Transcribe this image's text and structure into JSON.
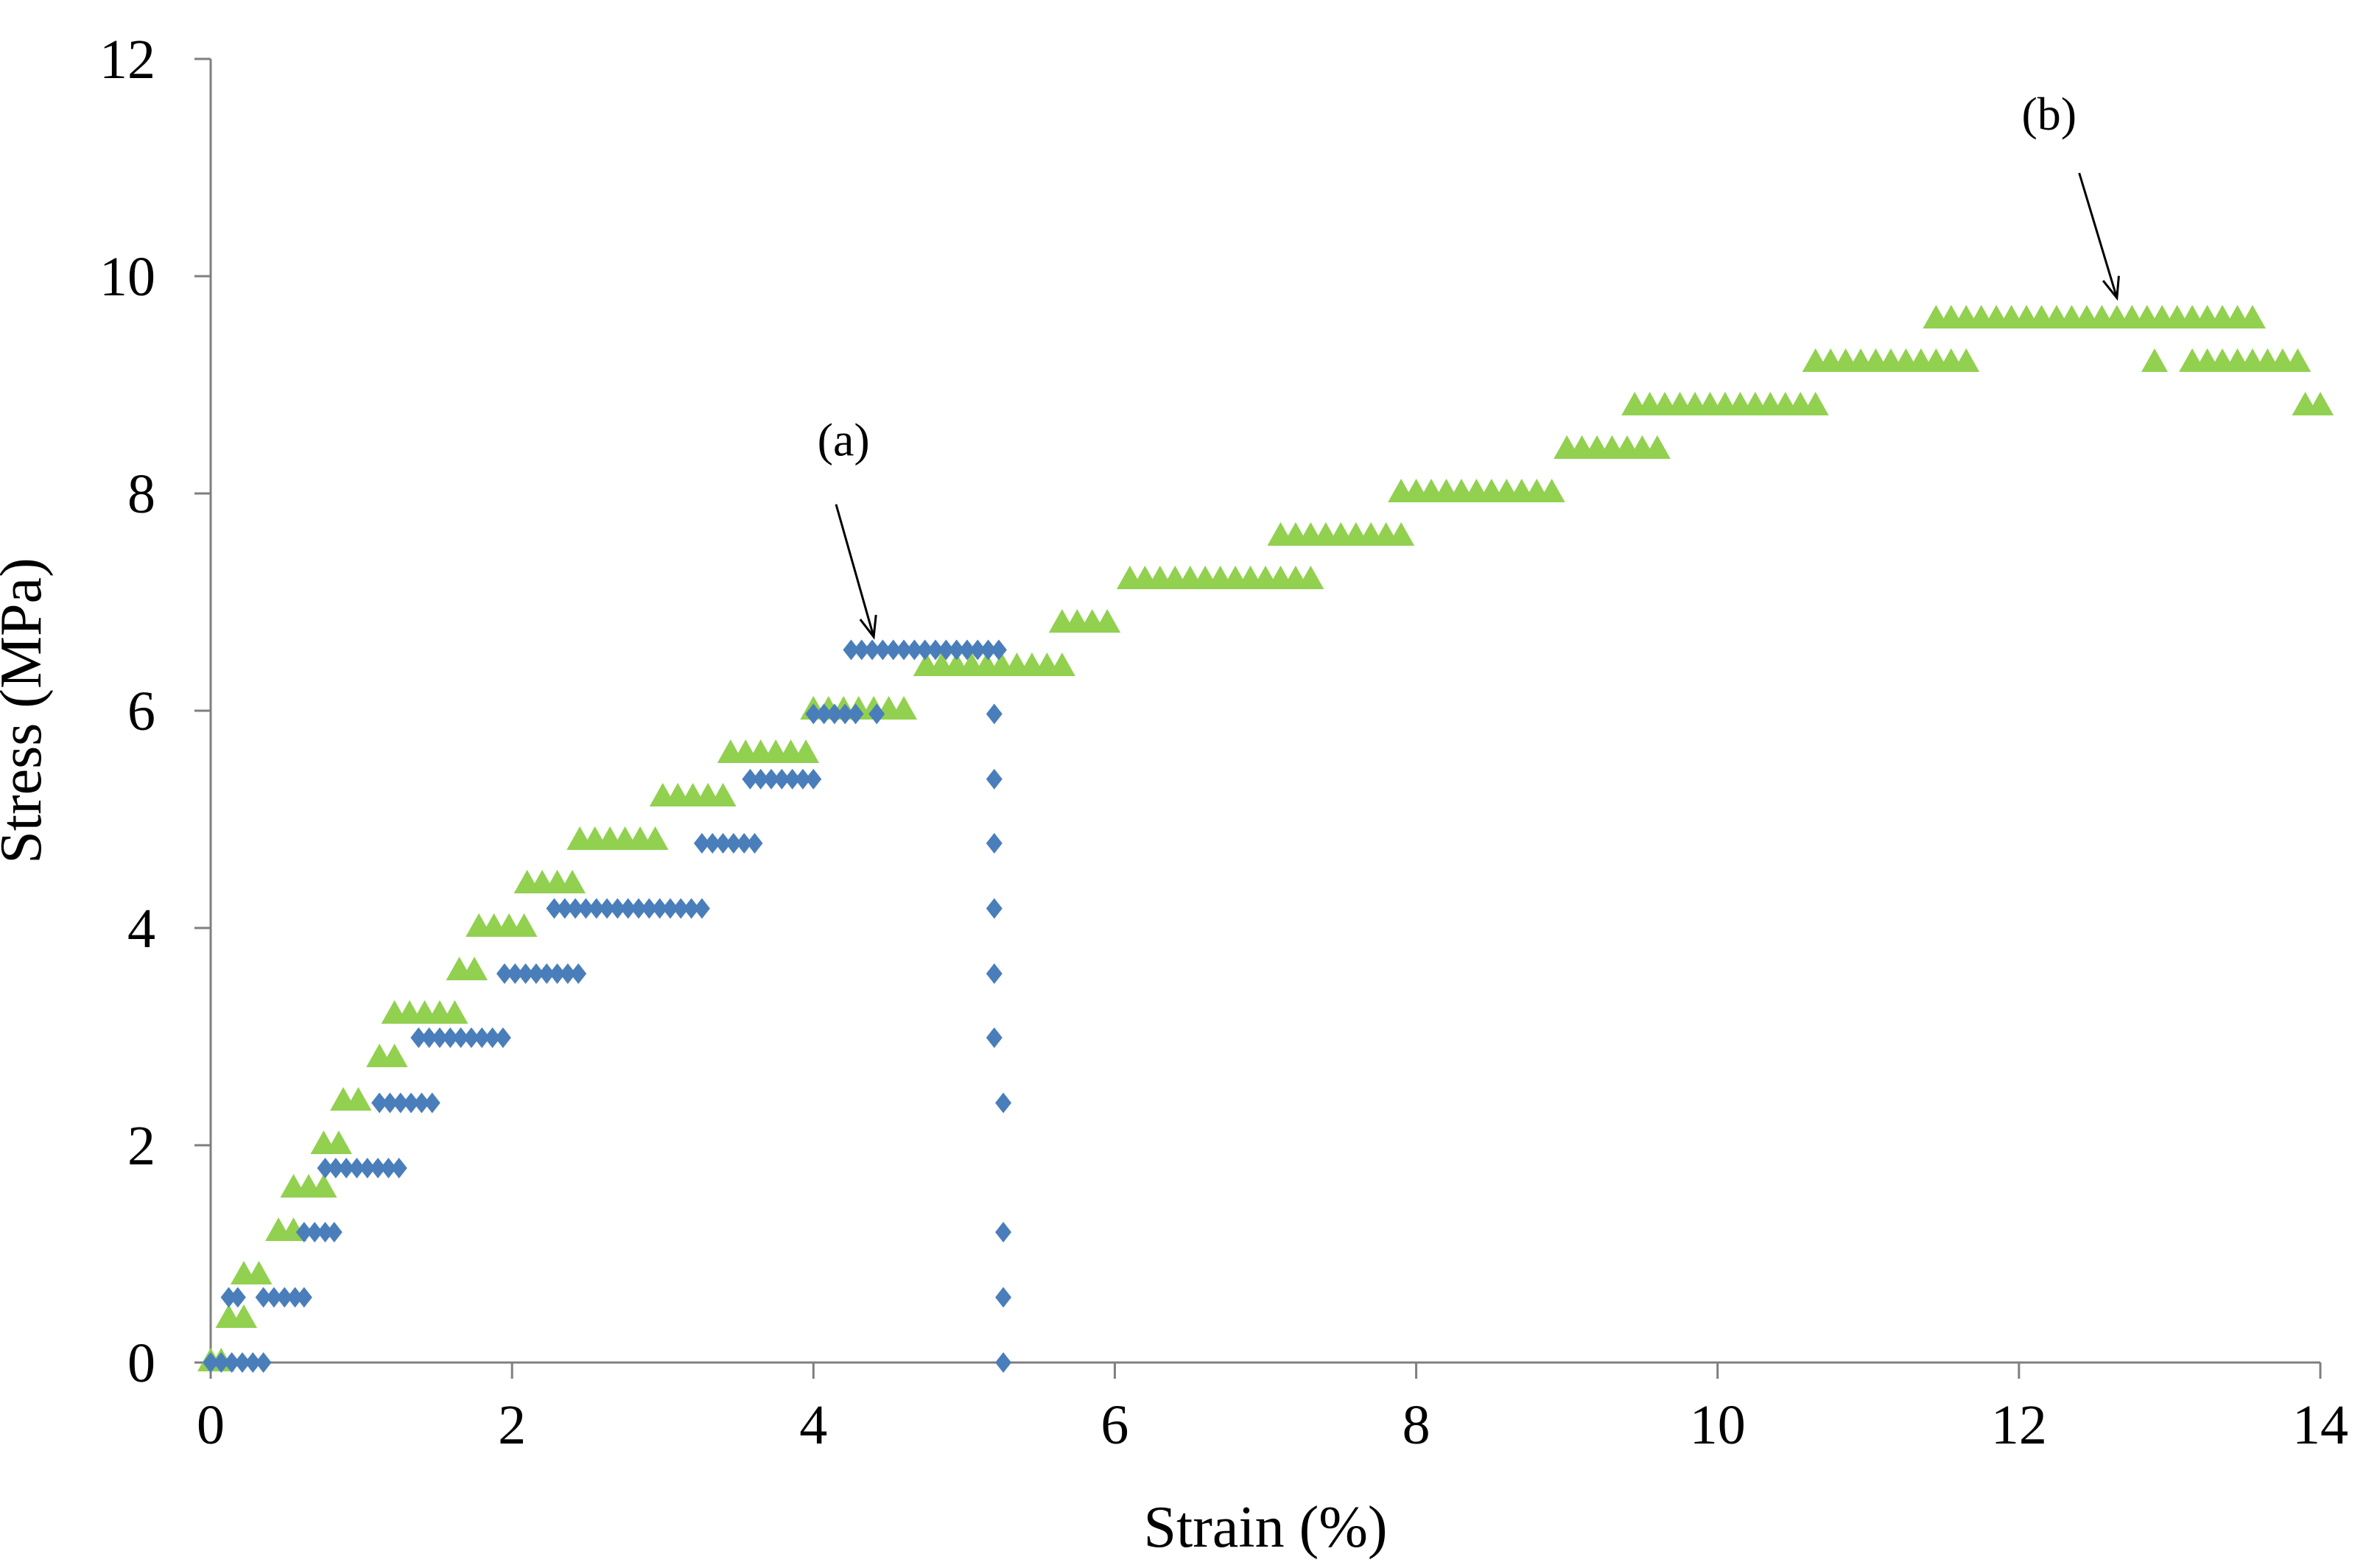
{
  "chart_data": {
    "type": "scatter",
    "title": "",
    "xlabel": "Strain (%)",
    "ylabel": "Stress (MPa)",
    "xlim": [
      0,
      14
    ],
    "ylim": [
      0,
      12
    ],
    "x_ticks": [
      0,
      2,
      4,
      6,
      8,
      10,
      12,
      14
    ],
    "y_ticks": [
      0,
      2,
      4,
      6,
      8,
      10,
      12
    ],
    "grid": false,
    "legend": "none",
    "series": [
      {
        "name": "(a)",
        "marker": "diamond",
        "color": "#4a7ebb",
        "points": [
          [
            0.0,
            0.0
          ],
          [
            0.07,
            0.0
          ],
          [
            0.14,
            0.0
          ],
          [
            0.21,
            0.0
          ],
          [
            0.28,
            0.0
          ],
          [
            0.35,
            0.0
          ],
          [
            0.12,
            0.6
          ],
          [
            0.18,
            0.6
          ],
          [
            0.35,
            0.6
          ],
          [
            0.42,
            0.6
          ],
          [
            0.49,
            0.6
          ],
          [
            0.56,
            0.6
          ],
          [
            0.62,
            0.6
          ],
          [
            0.62,
            1.2
          ],
          [
            0.69,
            1.2
          ],
          [
            0.76,
            1.2
          ],
          [
            0.82,
            1.2
          ],
          [
            0.76,
            1.79
          ],
          [
            0.83,
            1.79
          ],
          [
            0.9,
            1.79
          ],
          [
            0.97,
            1.79
          ],
          [
            1.04,
            1.79
          ],
          [
            1.11,
            1.79
          ],
          [
            1.18,
            1.79
          ],
          [
            1.25,
            1.79
          ],
          [
            1.12,
            2.39
          ],
          [
            1.19,
            2.39
          ],
          [
            1.26,
            2.39
          ],
          [
            1.33,
            2.39
          ],
          [
            1.4,
            2.39
          ],
          [
            1.47,
            2.39
          ],
          [
            1.38,
            2.99
          ],
          [
            1.45,
            2.99
          ],
          [
            1.52,
            2.99
          ],
          [
            1.59,
            2.99
          ],
          [
            1.66,
            2.99
          ],
          [
            1.73,
            2.99
          ],
          [
            1.8,
            2.99
          ],
          [
            1.87,
            2.99
          ],
          [
            1.94,
            2.99
          ],
          [
            1.95,
            3.58
          ],
          [
            2.02,
            3.58
          ],
          [
            2.09,
            3.58
          ],
          [
            2.16,
            3.58
          ],
          [
            2.23,
            3.58
          ],
          [
            2.3,
            3.58
          ],
          [
            2.37,
            3.58
          ],
          [
            2.44,
            3.58
          ],
          [
            2.28,
            4.18
          ],
          [
            2.35,
            4.18
          ],
          [
            2.42,
            4.18
          ],
          [
            2.49,
            4.18
          ],
          [
            2.56,
            4.18
          ],
          [
            2.63,
            4.18
          ],
          [
            2.7,
            4.18
          ],
          [
            2.77,
            4.18
          ],
          [
            2.84,
            4.18
          ],
          [
            2.91,
            4.18
          ],
          [
            2.98,
            4.18
          ],
          [
            3.05,
            4.18
          ],
          [
            3.12,
            4.18
          ],
          [
            3.19,
            4.18
          ],
          [
            3.26,
            4.18
          ],
          [
            3.26,
            4.78
          ],
          [
            3.33,
            4.78
          ],
          [
            3.4,
            4.78
          ],
          [
            3.47,
            4.78
          ],
          [
            3.54,
            4.78
          ],
          [
            3.61,
            4.78
          ],
          [
            3.58,
            5.37
          ],
          [
            3.65,
            5.37
          ],
          [
            3.72,
            5.37
          ],
          [
            3.79,
            5.37
          ],
          [
            3.86,
            5.37
          ],
          [
            3.93,
            5.37
          ],
          [
            4.0,
            5.37
          ],
          [
            4.0,
            5.97
          ],
          [
            4.07,
            5.97
          ],
          [
            4.14,
            5.97
          ],
          [
            4.21,
            5.97
          ],
          [
            4.28,
            5.97
          ],
          [
            4.42,
            5.97
          ],
          [
            4.25,
            6.56
          ],
          [
            4.32,
            6.56
          ],
          [
            4.39,
            6.56
          ],
          [
            4.46,
            6.56
          ],
          [
            4.53,
            6.56
          ],
          [
            4.6,
            6.56
          ],
          [
            4.67,
            6.56
          ],
          [
            4.74,
            6.56
          ],
          [
            4.81,
            6.56
          ],
          [
            4.88,
            6.56
          ],
          [
            4.95,
            6.56
          ],
          [
            5.02,
            6.56
          ],
          [
            5.09,
            6.56
          ],
          [
            5.16,
            6.56
          ],
          [
            5.23,
            6.56
          ],
          [
            5.2,
            5.97
          ],
          [
            5.2,
            5.37
          ],
          [
            5.2,
            4.78
          ],
          [
            5.2,
            4.18
          ],
          [
            5.2,
            3.58
          ],
          [
            5.2,
            2.99
          ],
          [
            5.26,
            2.39
          ],
          [
            5.26,
            1.2
          ],
          [
            5.26,
            0.6
          ],
          [
            5.26,
            0.0
          ]
        ]
      },
      {
        "name": "(b)",
        "marker": "triangle",
        "color": "#92d050",
        "points": [
          [
            0.0,
            0.0
          ],
          [
            0.07,
            0.0
          ],
          [
            0.12,
            0.4
          ],
          [
            0.22,
            0.4
          ],
          [
            0.22,
            0.8
          ],
          [
            0.32,
            0.8
          ],
          [
            0.45,
            1.2
          ],
          [
            0.55,
            1.2
          ],
          [
            0.55,
            1.6
          ],
          [
            0.65,
            1.6
          ],
          [
            0.75,
            1.6
          ],
          [
            0.75,
            2.0
          ],
          [
            0.85,
            2.0
          ],
          [
            0.88,
            2.4
          ],
          [
            0.98,
            2.4
          ],
          [
            1.12,
            2.8
          ],
          [
            1.22,
            2.8
          ],
          [
            1.22,
            3.2
          ],
          [
            1.32,
            3.2
          ],
          [
            1.42,
            3.2
          ],
          [
            1.52,
            3.2
          ],
          [
            1.62,
            3.2
          ],
          [
            1.65,
            3.6
          ],
          [
            1.75,
            3.6
          ],
          [
            1.78,
            4.0
          ],
          [
            1.88,
            4.0
          ],
          [
            1.98,
            4.0
          ],
          [
            2.08,
            4.0
          ],
          [
            2.1,
            4.4
          ],
          [
            2.2,
            4.4
          ],
          [
            2.3,
            4.4
          ],
          [
            2.4,
            4.4
          ],
          [
            2.45,
            4.8
          ],
          [
            2.55,
            4.8
          ],
          [
            2.65,
            4.8
          ],
          [
            2.75,
            4.8
          ],
          [
            2.85,
            4.8
          ],
          [
            2.95,
            4.8
          ],
          [
            3.0,
            5.2
          ],
          [
            3.1,
            5.2
          ],
          [
            3.2,
            5.2
          ],
          [
            3.3,
            5.2
          ],
          [
            3.4,
            5.2
          ],
          [
            3.45,
            5.6
          ],
          [
            3.55,
            5.6
          ],
          [
            3.65,
            5.6
          ],
          [
            3.75,
            5.6
          ],
          [
            3.85,
            5.6
          ],
          [
            3.95,
            5.6
          ],
          [
            4.0,
            6.0
          ],
          [
            4.1,
            6.0
          ],
          [
            4.2,
            6.0
          ],
          [
            4.3,
            6.0
          ],
          [
            4.4,
            6.0
          ],
          [
            4.5,
            6.0
          ],
          [
            4.6,
            6.0
          ],
          [
            4.75,
            6.4
          ],
          [
            4.85,
            6.4
          ],
          [
            4.95,
            6.4
          ],
          [
            5.05,
            6.4
          ],
          [
            5.15,
            6.4
          ],
          [
            5.25,
            6.4
          ],
          [
            5.35,
            6.4
          ],
          [
            5.45,
            6.4
          ],
          [
            5.55,
            6.4
          ],
          [
            5.65,
            6.4
          ],
          [
            5.65,
            6.8
          ],
          [
            5.75,
            6.8
          ],
          [
            5.85,
            6.8
          ],
          [
            5.95,
            6.8
          ],
          [
            6.1,
            7.2
          ],
          [
            6.2,
            7.2
          ],
          [
            6.3,
            7.2
          ],
          [
            6.4,
            7.2
          ],
          [
            6.5,
            7.2
          ],
          [
            6.6,
            7.2
          ],
          [
            6.7,
            7.2
          ],
          [
            6.8,
            7.2
          ],
          [
            6.9,
            7.2
          ],
          [
            7.0,
            7.2
          ],
          [
            7.1,
            7.2
          ],
          [
            7.2,
            7.2
          ],
          [
            7.3,
            7.2
          ],
          [
            7.1,
            7.6
          ],
          [
            7.2,
            7.6
          ],
          [
            7.3,
            7.6
          ],
          [
            7.4,
            7.6
          ],
          [
            7.5,
            7.6
          ],
          [
            7.6,
            7.6
          ],
          [
            7.7,
            7.6
          ],
          [
            7.8,
            7.6
          ],
          [
            7.9,
            7.6
          ],
          [
            7.9,
            8.0
          ],
          [
            8.0,
            8.0
          ],
          [
            8.1,
            8.0
          ],
          [
            8.2,
            8.0
          ],
          [
            8.3,
            8.0
          ],
          [
            8.4,
            8.0
          ],
          [
            8.5,
            8.0
          ],
          [
            8.6,
            8.0
          ],
          [
            8.7,
            8.0
          ],
          [
            8.8,
            8.0
          ],
          [
            8.9,
            8.0
          ],
          [
            9.0,
            8.4
          ],
          [
            9.1,
            8.4
          ],
          [
            9.2,
            8.4
          ],
          [
            9.3,
            8.4
          ],
          [
            9.4,
            8.4
          ],
          [
            9.5,
            8.4
          ],
          [
            9.6,
            8.4
          ],
          [
            9.45,
            8.8
          ],
          [
            9.55,
            8.8
          ],
          [
            9.65,
            8.8
          ],
          [
            9.75,
            8.8
          ],
          [
            9.85,
            8.8
          ],
          [
            9.95,
            8.8
          ],
          [
            10.05,
            8.8
          ],
          [
            10.15,
            8.8
          ],
          [
            10.25,
            8.8
          ],
          [
            10.35,
            8.8
          ],
          [
            10.45,
            8.8
          ],
          [
            10.55,
            8.8
          ],
          [
            10.65,
            8.8
          ],
          [
            10.65,
            9.2
          ],
          [
            10.75,
            9.2
          ],
          [
            10.85,
            9.2
          ],
          [
            10.95,
            9.2
          ],
          [
            11.05,
            9.2
          ],
          [
            11.15,
            9.2
          ],
          [
            11.25,
            9.2
          ],
          [
            11.35,
            9.2
          ],
          [
            11.45,
            9.2
          ],
          [
            11.55,
            9.2
          ],
          [
            11.65,
            9.2
          ],
          [
            11.45,
            9.6
          ],
          [
            11.55,
            9.6
          ],
          [
            11.65,
            9.6
          ],
          [
            11.75,
            9.6
          ],
          [
            11.85,
            9.6
          ],
          [
            11.95,
            9.6
          ],
          [
            12.05,
            9.6
          ],
          [
            12.15,
            9.6
          ],
          [
            12.25,
            9.6
          ],
          [
            12.35,
            9.6
          ],
          [
            12.45,
            9.6
          ],
          [
            12.55,
            9.6
          ],
          [
            12.65,
            9.6
          ],
          [
            12.75,
            9.6
          ],
          [
            12.85,
            9.6
          ],
          [
            12.95,
            9.6
          ],
          [
            13.05,
            9.6
          ],
          [
            13.15,
            9.6
          ],
          [
            13.25,
            9.6
          ],
          [
            13.35,
            9.6
          ],
          [
            13.45,
            9.6
          ],
          [
            13.55,
            9.6
          ],
          [
            12.9,
            9.2
          ],
          [
            13.15,
            9.2
          ],
          [
            13.25,
            9.2
          ],
          [
            13.35,
            9.2
          ],
          [
            13.45,
            9.2
          ],
          [
            13.55,
            9.2
          ],
          [
            13.65,
            9.2
          ],
          [
            13.75,
            9.2
          ],
          [
            13.85,
            9.2
          ],
          [
            13.9,
            8.8
          ],
          [
            14.0,
            8.8
          ]
        ]
      }
    ],
    "annotations": [
      {
        "text": "(a)",
        "label_at": [
          4.2,
          8.35
        ],
        "arrow_from": [
          4.15,
          7.9
        ],
        "arrow_to": [
          4.4,
          6.68
        ]
      },
      {
        "text": "(b)",
        "label_at": [
          12.2,
          11.35
        ],
        "arrow_from": [
          12.4,
          10.95
        ],
        "arrow_to": [
          12.65,
          9.8
        ]
      }
    ]
  }
}
